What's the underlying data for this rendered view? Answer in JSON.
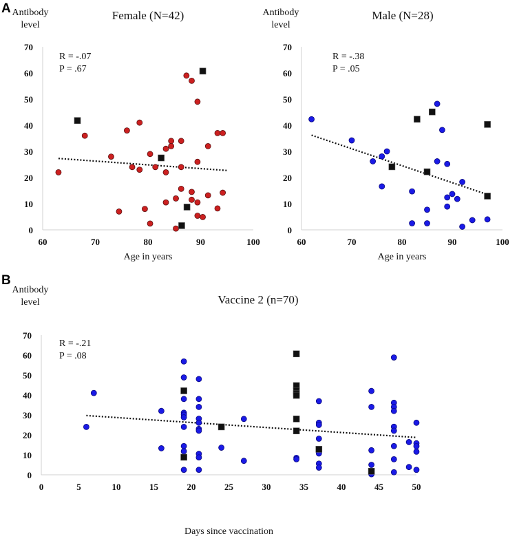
{
  "chart_data": [
    {
      "type": "scatter",
      "panel": "A",
      "title": "Female (N=42)",
      "xlabel": "Age in years",
      "ylabel": [
        "Antibody",
        "level"
      ],
      "xlim": [
        60,
        100
      ],
      "ylim": [
        0,
        70
      ],
      "xticks": [
        60,
        70,
        80,
        90,
        100
      ],
      "yticks": [
        0,
        10,
        20,
        30,
        40,
        50,
        60,
        70
      ],
      "stats": [
        "R = -.07",
        "P = .67"
      ],
      "color": "#cc2020",
      "marker": "circle",
      "points": [
        [
          63,
          22
        ],
        [
          68,
          36
        ],
        [
          73,
          28
        ],
        [
          76,
          38
        ],
        [
          77,
          24
        ],
        [
          78.4,
          41
        ],
        [
          78.4,
          23
        ],
        [
          74.5,
          7
        ],
        [
          79.4,
          8
        ],
        [
          80.4,
          29
        ],
        [
          80.4,
          2.4
        ],
        [
          81.4,
          24
        ],
        [
          83.4,
          31
        ],
        [
          83.4,
          22
        ],
        [
          83.4,
          10.5
        ],
        [
          84.4,
          34
        ],
        [
          84.4,
          32
        ],
        [
          85.3,
          12
        ],
        [
          85.3,
          0.5
        ],
        [
          86.3,
          34
        ],
        [
          86.3,
          24
        ],
        [
          86.3,
          15.7
        ],
        [
          87.3,
          59
        ],
        [
          88.3,
          57
        ],
        [
          88.3,
          14.5
        ],
        [
          88.3,
          11.5
        ],
        [
          89.4,
          49
        ],
        [
          89.4,
          26
        ],
        [
          89.4,
          10.5
        ],
        [
          89.4,
          5.4
        ],
        [
          90.4,
          4.9
        ],
        [
          91.4,
          32
        ],
        [
          91.4,
          13.2
        ],
        [
          93.2,
          37
        ],
        [
          94.2,
          37
        ],
        [
          93.2,
          8.2
        ],
        [
          94.2,
          14.2
        ]
      ],
      "squares": [
        [
          66.6,
          41.8
        ],
        [
          82.5,
          27.5
        ],
        [
          90.4,
          60.7
        ],
        [
          87.4,
          8.7
        ],
        [
          86.4,
          1.6
        ]
      ],
      "trend": [
        [
          63,
          27.3
        ],
        [
          95,
          22.7
        ]
      ]
    },
    {
      "type": "scatter",
      "panel": "",
      "title": "Male (N=28)",
      "xlabel": "Age in years",
      "ylabel": [
        "Antibody",
        "level"
      ],
      "xlim": [
        60,
        100
      ],
      "ylim": [
        0,
        70
      ],
      "xticks": [
        60,
        70,
        80,
        90,
        100
      ],
      "yticks": [
        0,
        10,
        20,
        30,
        40,
        50,
        60,
        70
      ],
      "stats": [
        "R = -.38",
        "P = .05"
      ],
      "color": "#1a1ae6",
      "marker": "circle",
      "points": [
        [
          62,
          42.3
        ],
        [
          70,
          34.2
        ],
        [
          74.2,
          26.2
        ],
        [
          76,
          28.1
        ],
        [
          77,
          30
        ],
        [
          76,
          16.6
        ],
        [
          82,
          14.7
        ],
        [
          82,
          2.5
        ],
        [
          85,
          7.7
        ],
        [
          85,
          2.5
        ],
        [
          87,
          48.2
        ],
        [
          87,
          26.2
        ],
        [
          88,
          38.2
        ],
        [
          89,
          25.2
        ],
        [
          89,
          12.4
        ],
        [
          89,
          8.9
        ],
        [
          90,
          13.7
        ],
        [
          91,
          11.8
        ],
        [
          92,
          18.3
        ],
        [
          92,
          1.2
        ],
        [
          94,
          3.7
        ],
        [
          97,
          4
        ]
      ],
      "squares": [
        [
          83,
          42.3
        ],
        [
          86,
          45.1
        ],
        [
          78,
          24.1
        ],
        [
          85,
          22.2
        ],
        [
          97,
          40.3
        ],
        [
          97,
          12.9
        ]
      ],
      "trend": [
        [
          62,
          36.2
        ],
        [
          97,
          13.5
        ]
      ]
    },
    {
      "type": "scatter",
      "panel": "B",
      "title": "Vaccine 2 (n=70)",
      "xlabel": "Days since vaccination",
      "ylabel": [
        "Antibody",
        "level"
      ],
      "xlim": [
        0,
        50
      ],
      "ylim": [
        0,
        70
      ],
      "xticks": [
        0,
        5,
        10,
        15,
        20,
        25,
        30,
        35,
        40,
        45,
        50
      ],
      "yticks": [
        0,
        10,
        20,
        30,
        40,
        50,
        60,
        70
      ],
      "stats": [
        "R = -.21",
        "P = .08"
      ],
      "color": "#1a1ae6",
      "marker": "circle",
      "points": [
        [
          6,
          24
        ],
        [
          7,
          41
        ],
        [
          16,
          32
        ],
        [
          16,
          13.3
        ],
        [
          19,
          56.8
        ],
        [
          19,
          48.8
        ],
        [
          19,
          38
        ],
        [
          19,
          31.1
        ],
        [
          19,
          30.1
        ],
        [
          19,
          28.8
        ],
        [
          19,
          24
        ],
        [
          19,
          14.4
        ],
        [
          19,
          11.8
        ],
        [
          19,
          2.5
        ],
        [
          21,
          48
        ],
        [
          21,
          38
        ],
        [
          21,
          34
        ],
        [
          21,
          28.1
        ],
        [
          21,
          26.1
        ],
        [
          21,
          23
        ],
        [
          21,
          22.1
        ],
        [
          21,
          10.5
        ],
        [
          21,
          8.7
        ],
        [
          21,
          2.5
        ],
        [
          24,
          13.6
        ],
        [
          27,
          28
        ],
        [
          27,
          7
        ],
        [
          34,
          8.5
        ],
        [
          34,
          7.8
        ],
        [
          37,
          36.9
        ],
        [
          37,
          26.1
        ],
        [
          37,
          25
        ],
        [
          37,
          18.1
        ],
        [
          37,
          11.2
        ],
        [
          37,
          10.7
        ],
        [
          37,
          5.6
        ],
        [
          37,
          3.6
        ],
        [
          44,
          42
        ],
        [
          44,
          34
        ],
        [
          44,
          12.3
        ],
        [
          44,
          5
        ],
        [
          44,
          0.3
        ],
        [
          47,
          58.8
        ],
        [
          47,
          36.1
        ],
        [
          47,
          34
        ],
        [
          47,
          32
        ],
        [
          47,
          24.1
        ],
        [
          47,
          22.1
        ],
        [
          47,
          14.4
        ],
        [
          47,
          7.8
        ],
        [
          47,
          1.3
        ],
        [
          49,
          16.4
        ],
        [
          49,
          3.9
        ],
        [
          50,
          26.1
        ],
        [
          50,
          15.8
        ],
        [
          50,
          14.3
        ],
        [
          50,
          11.6
        ],
        [
          50,
          2.5
        ]
      ],
      "squares": [
        [
          19,
          42.1
        ],
        [
          19,
          8.8
        ],
        [
          24,
          24
        ],
        [
          34,
          60.6
        ],
        [
          34,
          44.7
        ],
        [
          34,
          42.2
        ],
        [
          34,
          40.8
        ],
        [
          34,
          39.8
        ],
        [
          34,
          28
        ],
        [
          34,
          22
        ],
        [
          37,
          12.8
        ],
        [
          44,
          1.8
        ]
      ],
      "trend": [
        [
          6,
          29.7
        ],
        [
          50,
          18.7
        ]
      ]
    }
  ]
}
